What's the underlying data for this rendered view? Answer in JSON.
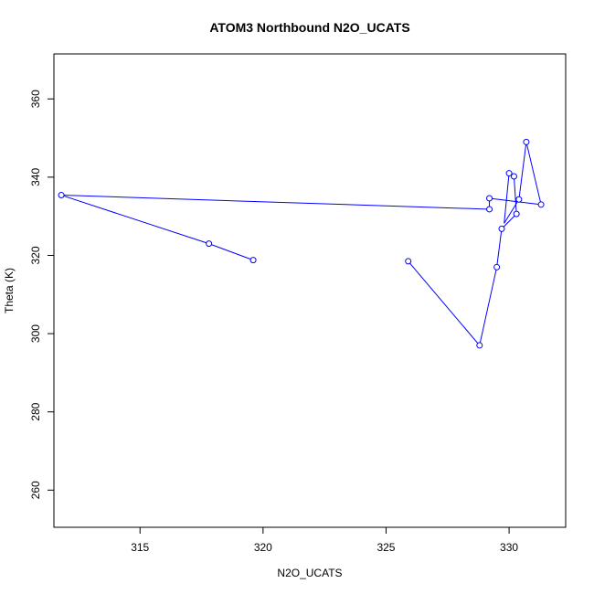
{
  "chart_data": {
    "type": "line",
    "title": "ATOM3 Northbound N2O_UCATS",
    "xlabel": "N2O_UCATS",
    "ylabel": "Theta (K)",
    "xlim": [
      311.5,
      332.3
    ],
    "ylim": [
      250.5,
      371.5
    ],
    "xticks": [
      315,
      320,
      325,
      330
    ],
    "yticks": [
      260,
      280,
      300,
      320,
      340,
      360
    ],
    "grid": false,
    "colors": {
      "series": "#0000ff",
      "axis": "#000000"
    },
    "series": [
      {
        "points": [
          {
            "x": 319.6,
            "y": 318.8
          },
          {
            "x": 317.8,
            "y": 323.0
          },
          {
            "x": 311.8,
            "y": 335.4
          },
          {
            "x": 329.2,
            "y": 331.8
          },
          {
            "x": 329.2,
            "y": 334.6
          },
          {
            "x": 331.3,
            "y": 333.0
          },
          {
            "x": 330.7,
            "y": 349.0
          },
          {
            "x": 330.4,
            "y": 334.3
          },
          {
            "x": 329.8,
            "y": 328.2
          },
          {
            "x": 330.0,
            "y": 341.0
          },
          {
            "x": 330.2,
            "y": 340.2
          },
          {
            "x": 330.3,
            "y": 330.6
          },
          {
            "x": 329.7,
            "y": 326.8
          },
          {
            "x": 329.5,
            "y": 317.0
          },
          {
            "x": 328.8,
            "y": 297.0
          },
          {
            "x": 325.9,
            "y": 318.5
          }
        ],
        "markers": [
          {
            "x": 319.6,
            "y": 318.8
          },
          {
            "x": 317.8,
            "y": 323.0
          },
          {
            "x": 311.8,
            "y": 335.4
          },
          {
            "x": 329.2,
            "y": 331.8
          },
          {
            "x": 329.2,
            "y": 334.6
          },
          {
            "x": 331.3,
            "y": 333.0
          },
          {
            "x": 330.7,
            "y": 349.0
          },
          {
            "x": 330.4,
            "y": 334.3
          },
          {
            "x": 330.0,
            "y": 341.0
          },
          {
            "x": 330.2,
            "y": 340.2
          },
          {
            "x": 330.3,
            "y": 330.6
          },
          {
            "x": 329.7,
            "y": 326.8
          },
          {
            "x": 329.5,
            "y": 317.0
          },
          {
            "x": 328.8,
            "y": 297.0
          },
          {
            "x": 325.9,
            "y": 318.5
          }
        ]
      }
    ]
  }
}
